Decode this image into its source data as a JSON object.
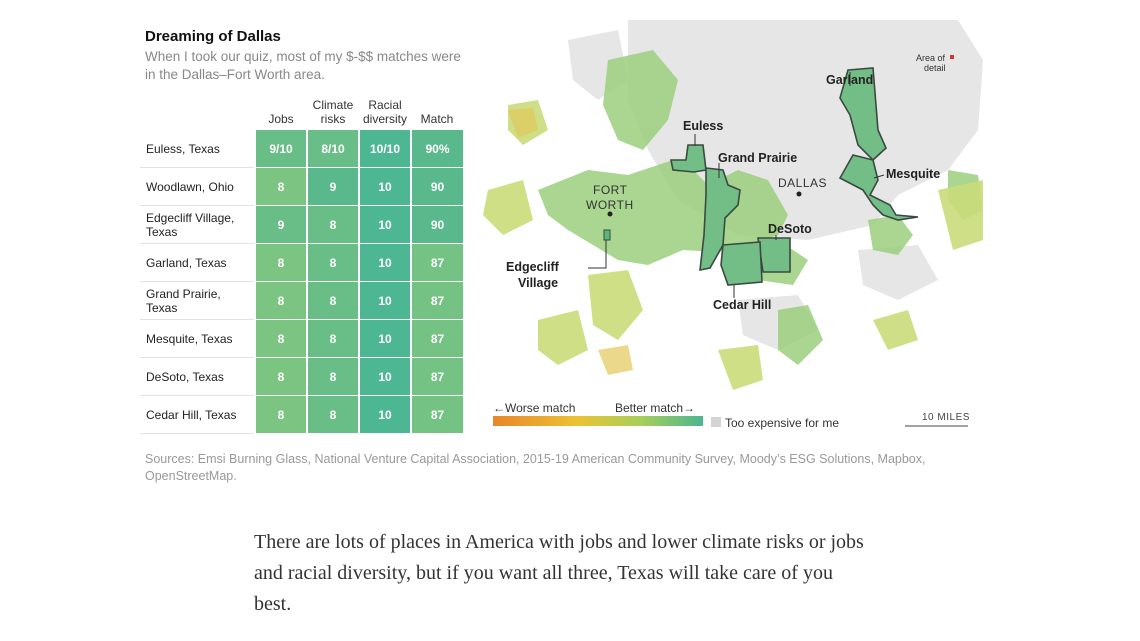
{
  "graphic": {
    "title": "Dreaming of Dallas",
    "subtitle": "When I took our quiz, most of my $-$$ matches were in the Dallas–Fort Worth area."
  },
  "table": {
    "headers": {
      "jobs": "Jobs",
      "climate_1": "Climate",
      "climate_2": "risks",
      "racial_1": "Racial",
      "racial_2": "diversity",
      "match": "Match"
    },
    "rows": [
      {
        "city": "Euless, Texas",
        "jobs": "9/10",
        "climate": "8/10",
        "racial": "10/10",
        "match": "90%"
      },
      {
        "city": "Woodlawn, Ohio",
        "jobs": "8",
        "climate": "9",
        "racial": "10",
        "match": "90"
      },
      {
        "city": "Edgecliff Village, Texas",
        "jobs": "9",
        "climate": "8",
        "racial": "10",
        "match": "90"
      },
      {
        "city": "Garland, Texas",
        "jobs": "8",
        "climate": "8",
        "racial": "10",
        "match": "87"
      },
      {
        "city": "Grand Prairie, Texas",
        "jobs": "8",
        "climate": "8",
        "racial": "10",
        "match": "87"
      },
      {
        "city": "Mesquite, Texas",
        "jobs": "8",
        "climate": "8",
        "racial": "10",
        "match": "87"
      },
      {
        "city": "DeSoto, Texas",
        "jobs": "8",
        "climate": "8",
        "racial": "10",
        "match": "87"
      },
      {
        "city": "Cedar Hill, Texas",
        "jobs": "8",
        "climate": "8",
        "racial": "10",
        "match": "87"
      }
    ],
    "colors": {
      "jobs_8": "#7cc482",
      "jobs_9": "#68be86",
      "climate_8": "#68be86",
      "climate_9": "#5ab98c",
      "racial_10": "#4db692",
      "match": "#74c284"
    }
  },
  "map": {
    "labels": {
      "garland": "Garland",
      "euless": "Euless",
      "grand_prairie": "Grand Prairie",
      "dallas": "DALLAS",
      "mesquite": "Mesquite",
      "fort_worth_1": "FORT",
      "fort_worth_2": "WORTH",
      "desoto": "DeSoto",
      "edgecliff_1": "Edgecliff",
      "edgecliff_2": "Village",
      "cedar_hill": "Cedar Hill"
    },
    "inset": {
      "line1": "Area of",
      "line2": "detail"
    },
    "legend": {
      "worse": "←Worse match",
      "better": "Better match→",
      "expensive": "Too expensive for me",
      "gradient_colors": [
        "#e8862a",
        "#ecc234",
        "#a9cf5a",
        "#4cb58f"
      ],
      "expensive_color": "#d4d4d4"
    },
    "scale": "10 MILES"
  },
  "sources": "Sources: Emsi Burning Glass, National Venture Capital Association, 2015-19 American Community Survey, Moody’s ESG Solutions, Mapbox, OpenStreetMap.",
  "article": {
    "paragraph": "There are lots of places in America with jobs and lower climate risks or jobs and racial diversity, but if you want all three, Texas will take care of you best."
  }
}
